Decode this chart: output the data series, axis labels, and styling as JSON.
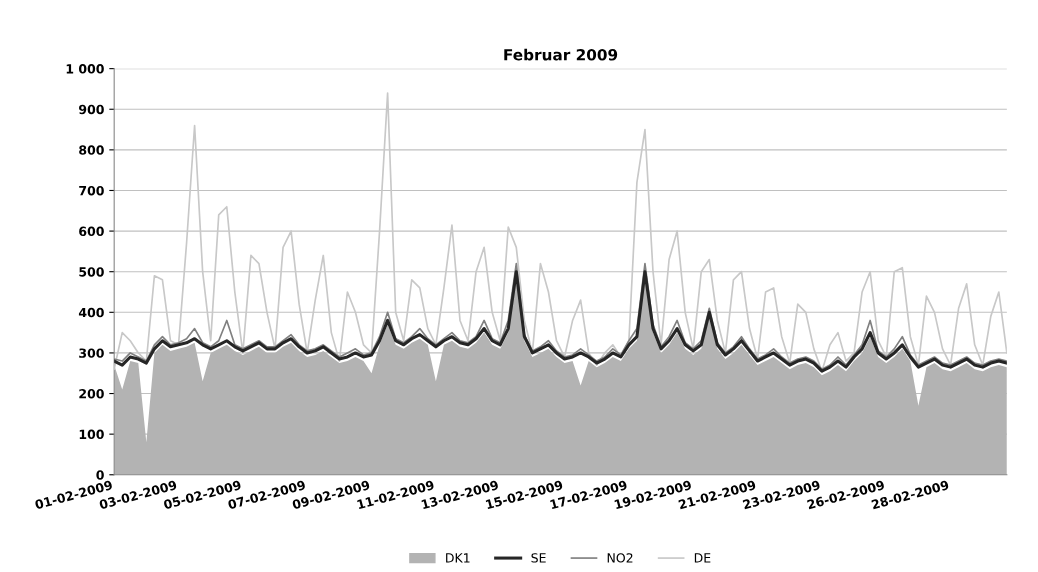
{
  "chart_data": {
    "type": "line",
    "title": "Februar 2009",
    "categories": [
      "01-02-2009",
      null,
      null,
      null,
      null,
      null,
      null,
      null,
      "03-02-2009",
      null,
      null,
      null,
      null,
      null,
      null,
      null,
      "05-02-2009",
      null,
      null,
      null,
      null,
      null,
      null,
      null,
      "07-02-2009",
      null,
      null,
      null,
      null,
      null,
      null,
      null,
      "09-02-2009",
      null,
      null,
      null,
      null,
      null,
      null,
      null,
      "11-02-2009",
      null,
      null,
      null,
      null,
      null,
      null,
      null,
      "13-02-2009",
      null,
      null,
      null,
      null,
      null,
      null,
      null,
      "15-02-2009",
      null,
      null,
      null,
      null,
      null,
      null,
      null,
      "17-02-2009",
      null,
      null,
      null,
      null,
      null,
      null,
      null,
      "19-02-2009",
      null,
      null,
      null,
      null,
      null,
      null,
      null,
      "21-02-2009",
      null,
      null,
      null,
      null,
      null,
      null,
      null,
      "23-02-2009",
      null,
      null,
      null,
      null,
      null,
      null,
      null,
      "26-02-2009",
      null,
      null,
      null,
      null,
      null,
      null,
      null,
      "28-02-2009",
      null,
      null,
      null,
      null,
      null,
      null,
      null
    ],
    "ylim": [
      0,
      1000
    ],
    "yticks": [
      0,
      100,
      200,
      300,
      400,
      500,
      600,
      700,
      800,
      900,
      {
        "value": 1000,
        "label": "1 000"
      }
    ],
    "grid": "y",
    "legend": "bottom",
    "series": [
      {
        "name": "DK1",
        "type": "area",
        "color": "#b3b3b3",
        "values": [
          270,
          210,
          280,
          275,
          80,
          300,
          320,
          305,
          310,
          315,
          325,
          230,
          300,
          310,
          320,
          305,
          295,
          305,
          315,
          300,
          300,
          315,
          325,
          305,
          290,
          295,
          305,
          290,
          275,
          280,
          290,
          280,
          250,
          320,
          370,
          320,
          310,
          325,
          335,
          320,
          230,
          320,
          330,
          315,
          310,
          325,
          350,
          320,
          310,
          350,
          490,
          330,
          290,
          300,
          310,
          290,
          275,
          280,
          220,
          280,
          265,
          275,
          290,
          280,
          310,
          330,
          490,
          350,
          300,
          320,
          350,
          310,
          295,
          310,
          390,
          310,
          285,
          300,
          320,
          295,
          270,
          280,
          290,
          275,
          260,
          270,
          275,
          265,
          245,
          255,
          270,
          255,
          280,
          300,
          340,
          290,
          275,
          290,
          310,
          280,
          170,
          265,
          275,
          260,
          255,
          265,
          275,
          260,
          255,
          265,
          270,
          265
        ]
      },
      {
        "name": "SE",
        "color": "#262626",
        "values": [
          280,
          270,
          290,
          285,
          275,
          310,
          330,
          315,
          320,
          325,
          335,
          320,
          310,
          320,
          330,
          315,
          305,
          315,
          325,
          310,
          310,
          325,
          335,
          315,
          300,
          305,
          315,
          300,
          285,
          290,
          300,
          290,
          295,
          330,
          380,
          330,
          320,
          335,
          345,
          330,
          315,
          330,
          340,
          325,
          320,
          335,
          360,
          330,
          320,
          360,
          500,
          340,
          300,
          310,
          320,
          300,
          285,
          290,
          300,
          290,
          275,
          285,
          300,
          290,
          320,
          340,
          500,
          360,
          310,
          330,
          360,
          320,
          305,
          320,
          400,
          320,
          295,
          310,
          330,
          305,
          280,
          290,
          300,
          285,
          270,
          280,
          285,
          275,
          255,
          265,
          280,
          265,
          290,
          310,
          350,
          300,
          285,
          300,
          320,
          290,
          265,
          275,
          285,
          270,
          265,
          275,
          285,
          270,
          265,
          275,
          280,
          275
        ]
      },
      {
        "name": "NO2",
        "color": "#808080",
        "values": [
          285,
          280,
          300,
          290,
          280,
          320,
          340,
          320,
          325,
          335,
          360,
          325,
          315,
          330,
          380,
          320,
          310,
          320,
          330,
          315,
          315,
          330,
          345,
          320,
          305,
          310,
          320,
          305,
          290,
          300,
          310,
          295,
          300,
          340,
          400,
          335,
          325,
          340,
          360,
          335,
          320,
          335,
          350,
          330,
          325,
          340,
          380,
          335,
          325,
          380,
          520,
          345,
          305,
          315,
          330,
          305,
          290,
          295,
          310,
          295,
          280,
          290,
          310,
          295,
          330,
          360,
          520,
          370,
          315,
          340,
          380,
          325,
          310,
          330,
          410,
          325,
          300,
          315,
          340,
          310,
          285,
          295,
          310,
          290,
          275,
          285,
          290,
          280,
          260,
          270,
          290,
          270,
          295,
          320,
          380,
          305,
          290,
          310,
          340,
          295,
          270,
          280,
          290,
          275,
          270,
          280,
          290,
          275,
          270,
          280,
          285,
          280
        ]
      },
      {
        "name": "DE",
        "color": "#c8c8c8",
        "values": [
          260,
          350,
          330,
          300,
          280,
          490,
          480,
          330,
          320,
          570,
          860,
          500,
          330,
          640,
          660,
          450,
          300,
          540,
          520,
          400,
          310,
          560,
          600,
          420,
          300,
          430,
          540,
          350,
          280,
          450,
          400,
          320,
          300,
          600,
          940,
          400,
          330,
          480,
          460,
          360,
          320,
          460,
          615,
          380,
          330,
          500,
          560,
          400,
          330,
          610,
          560,
          380,
          300,
          520,
          450,
          330,
          290,
          380,
          430,
          300,
          270,
          300,
          320,
          290,
          330,
          720,
          850,
          500,
          320,
          530,
          600,
          400,
          310,
          500,
          530,
          380,
          300,
          480,
          500,
          360,
          285,
          450,
          460,
          340,
          275,
          420,
          400,
          310,
          255,
          320,
          350,
          280,
          300,
          450,
          500,
          330,
          290,
          500,
          510,
          340,
          270,
          440,
          400,
          310,
          270,
          410,
          470,
          320,
          270,
          390,
          450,
          300
        ]
      }
    ]
  }
}
